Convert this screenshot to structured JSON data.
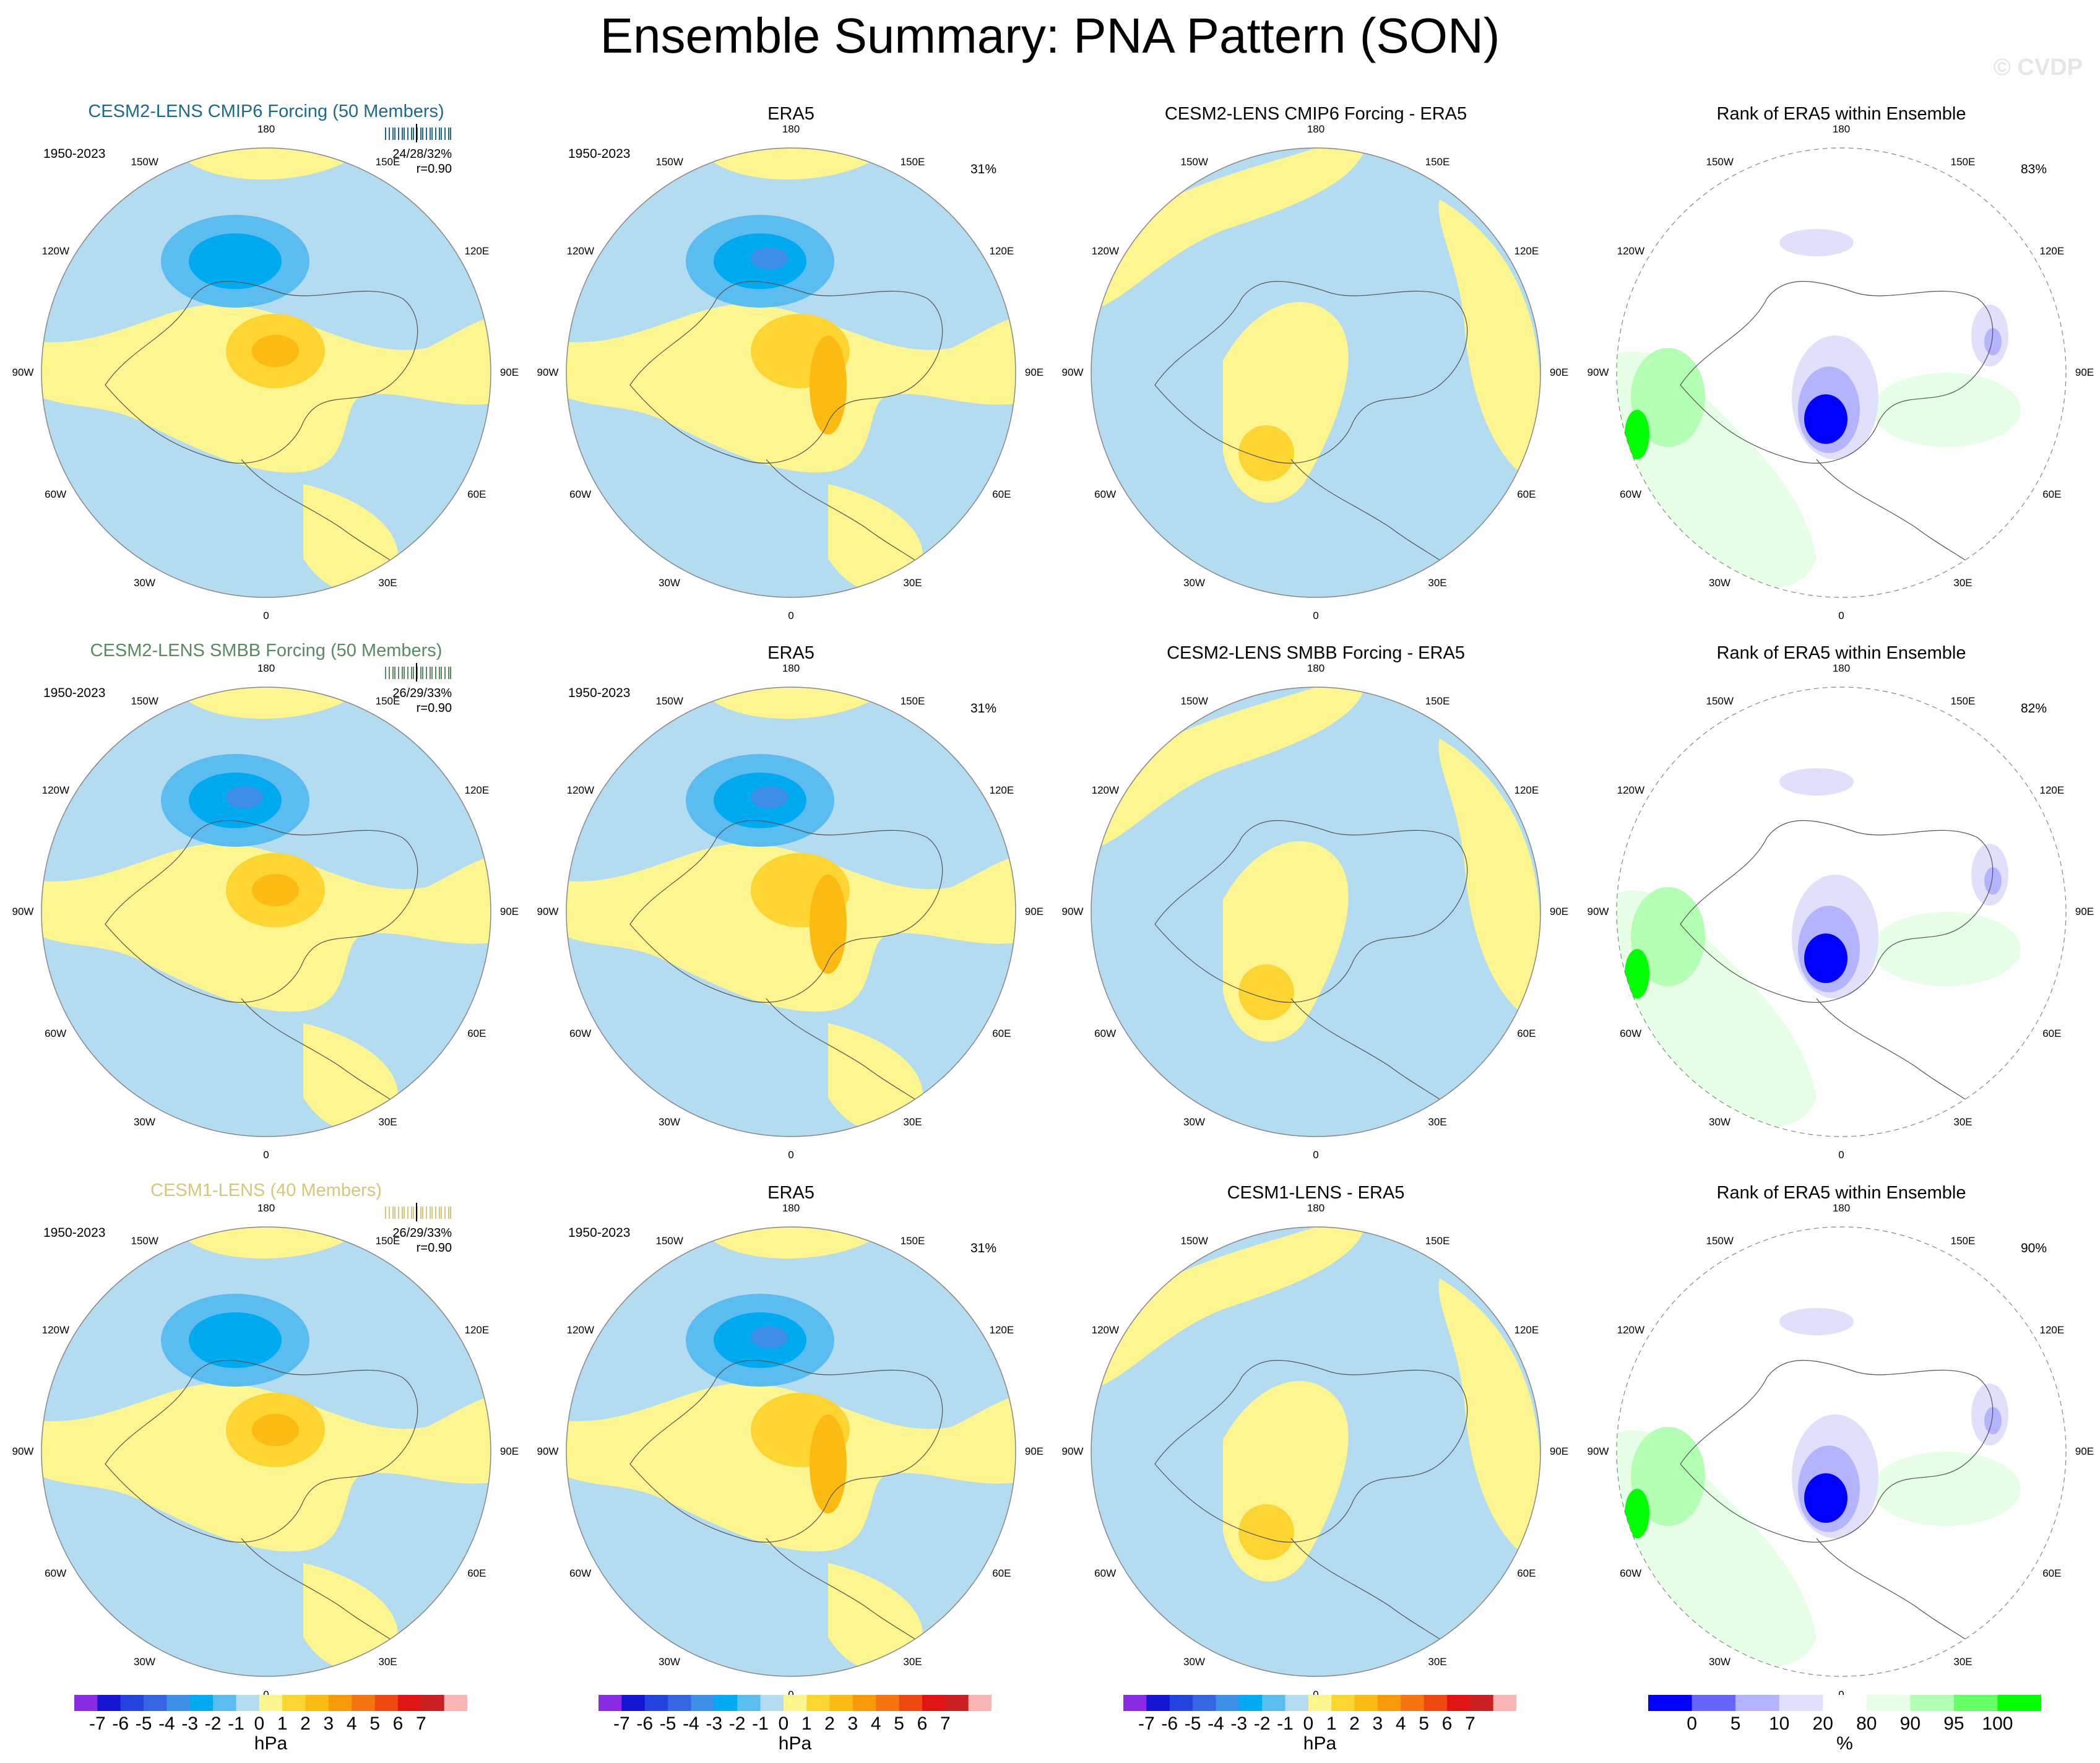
{
  "title": "Ensemble Summary: PNA Pattern (SON)",
  "watermark": "© CVDP",
  "period": "1950-2023",
  "longitude_labels": [
    "180",
    "150E",
    "120E",
    "90E",
    "60E",
    "30E",
    "0",
    "30W",
    "60W",
    "90W",
    "120W",
    "150W"
  ],
  "rows": [
    {
      "ensemble": {
        "title": "CESM2-LENS CMIP6 Forcing (50 Members)",
        "color": "#1b6c8c",
        "stats_pct": "24/28/32%",
        "stats_r": "r=0.90"
      },
      "obs": {
        "title": "ERA5",
        "pct": "31%"
      },
      "diff": {
        "title": "CESM2-LENS CMIP6 Forcing - ERA5"
      },
      "rank": {
        "title": "Rank of ERA5 within Ensemble",
        "pct": "83%"
      }
    },
    {
      "ensemble": {
        "title": "CESM2-LENS SMBB Forcing (50 Members)",
        "color": "#5a8a62",
        "stats_pct": "26/29/33%",
        "stats_r": "r=0.90"
      },
      "obs": {
        "title": "ERA5",
        "pct": "31%"
      },
      "diff": {
        "title": "CESM2-LENS SMBB Forcing - ERA5"
      },
      "rank": {
        "title": "Rank of ERA5 within Ensemble",
        "pct": "82%"
      }
    },
    {
      "ensemble": {
        "title": "CESM1-LENS (40 Members)",
        "color": "#d6c77a",
        "stats_pct": "26/29/33%",
        "stats_r": "r=0.90"
      },
      "obs": {
        "title": "ERA5",
        "pct": "31%"
      },
      "diff": {
        "title": "CESM1-LENS - ERA5"
      },
      "rank": {
        "title": "Rank of ERA5 within Ensemble",
        "pct": "90%"
      }
    }
  ],
  "colorbar_hpa": {
    "unit": "hPa",
    "ticks": [
      "-7",
      "-6",
      "-5",
      "-4",
      "-3",
      "-2",
      "-1",
      "0",
      "1",
      "2",
      "3",
      "4",
      "5",
      "6",
      "7"
    ],
    "colors": [
      "#8a2be2",
      "#1414d2",
      "#2244dd",
      "#3566e0",
      "#3f8ee8",
      "#00aaf0",
      "#5bbcf0",
      "#b4dcf0",
      "#fcf590",
      "#fcd533",
      "#fbbb12",
      "#f89a0a",
      "#f47510",
      "#ee4812",
      "#e01414",
      "#c82020",
      "#fab4b4"
    ]
  },
  "colorbar_rank": {
    "unit": "%",
    "ticks": [
      "0",
      "5",
      "10",
      "20",
      "80",
      "90",
      "95",
      "100"
    ],
    "colors": [
      "#0000ff",
      "#6666ff",
      "#b3b3ff",
      "#e0e0fa",
      "#ffffff",
      "#e6ffe6",
      "#b3ffb3",
      "#66ff66",
      "#00ff00"
    ]
  },
  "fill_colors": {
    "yellow": "#fcf590",
    "lightblue": "#b4dcf0",
    "blue": "#5bbcf0",
    "cyan": "#00aaf0",
    "deepblue": "#3f8ee8",
    "gold": "#fcd533",
    "orange": "#fbbb12",
    "darkorange": "#f89a0a"
  }
}
